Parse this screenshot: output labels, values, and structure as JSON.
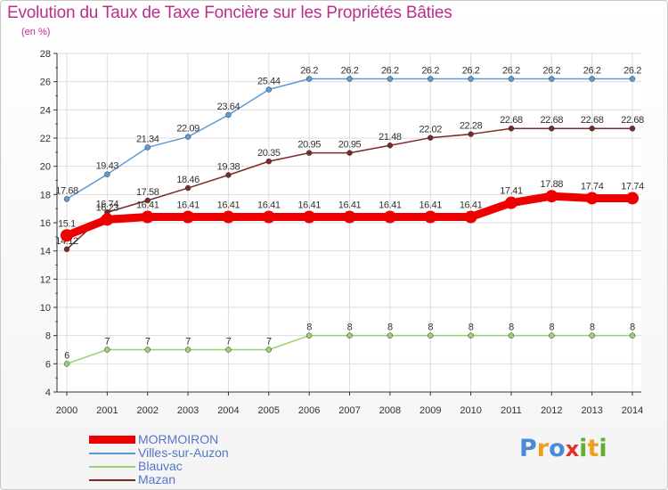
{
  "title": "Evolution du Taux de Taxe Foncière sur les Propriétés Bâties",
  "subtitle": "(en %)",
  "logo": {
    "letters": [
      "P",
      "r",
      "o",
      "x",
      "i",
      "t",
      "i"
    ],
    "colors": [
      "#4a8ad8",
      "#f0a020",
      "#4a8ad8",
      "#e03030",
      "#60b030",
      "#f0a020",
      "#60b030"
    ]
  },
  "chart_data": {
    "type": "line",
    "title": "Evolution du Taux de Taxe Foncière sur les Propriétés Bâties",
    "ylabel": "(en %)",
    "xlabel": "",
    "x": [
      "2000",
      "2001",
      "2002",
      "2003",
      "2004",
      "2005",
      "2006",
      "2007",
      "2008",
      "2009",
      "2010",
      "2011",
      "2012",
      "2013",
      "2014"
    ],
    "ylim": [
      4,
      28
    ],
    "yticks": [
      "4",
      "6",
      "8",
      "10",
      "12",
      "14",
      "16",
      "18",
      "20",
      "22",
      "24",
      "26",
      "28"
    ],
    "grid": true,
    "legend_position": "bottom-left",
    "series": [
      {
        "name": "Villes-sur-Auzon",
        "color": "#5b9bd5",
        "values": [
          17.68,
          19.43,
          21.34,
          22.09,
          23.64,
          25.44,
          26.2,
          26.2,
          26.2,
          26.2,
          26.2,
          26.2,
          26.2,
          26.2,
          26.2
        ],
        "labels": [
          "17.68",
          "19.43",
          "21.34",
          "22.09",
          "23.64",
          "25.44",
          "26.2",
          "26.2",
          "26.2",
          "26.2",
          "26.2",
          "26.2",
          "26.2",
          "26.2",
          "26.2"
        ]
      },
      {
        "name": "Mazan",
        "color": "#7b2a2a",
        "values": [
          14.12,
          16.74,
          17.58,
          18.46,
          19.38,
          20.35,
          20.95,
          20.95,
          21.48,
          22.02,
          22.28,
          22.68,
          22.68,
          22.68,
          22.68
        ],
        "labels": [
          "14.12",
          "16.74",
          "17.58",
          "18.46",
          "19.38",
          "20.35",
          "20.95",
          "20.95",
          "21.48",
          "22.02",
          "22.28",
          "22.68",
          "22.68",
          "22.68",
          "22.68"
        ]
      },
      {
        "name": "MORMOIRON",
        "color": "#ee0000",
        "values": [
          15.1,
          16.23,
          16.41,
          16.41,
          16.41,
          16.41,
          16.41,
          16.41,
          16.41,
          16.41,
          16.41,
          17.41,
          17.88,
          17.74,
          17.74
        ],
        "labels": [
          "15.1",
          "16.23",
          "16.41",
          "16.41",
          "16.41",
          "16.41",
          "16.41",
          "16.41",
          "16.41",
          "16.41",
          "16.41",
          "17.41",
          "17.88",
          "17.74",
          "17.74"
        ]
      },
      {
        "name": "Blauvac",
        "color": "#99d070",
        "values": [
          6,
          7,
          7,
          7,
          7,
          7,
          8,
          8,
          8,
          8,
          8,
          8,
          8,
          8,
          8
        ],
        "labels": [
          "6",
          "7",
          "7",
          "7",
          "7",
          "7",
          "8",
          "8",
          "8",
          "8",
          "8",
          "8",
          "8",
          "8",
          "8"
        ]
      }
    ],
    "legend": [
      "MORMOIRON",
      "Villes-sur-Auzon",
      "Blauvac",
      "Mazan"
    ]
  }
}
